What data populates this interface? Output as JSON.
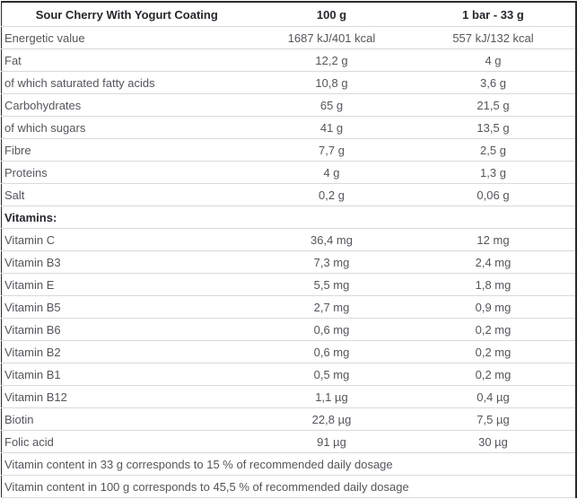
{
  "table": {
    "header": {
      "product": "Sour Cherry With Yogurt Coating",
      "per_100g": "100 g",
      "per_bar": "1 bar - 33 g"
    },
    "nutrients": [
      {
        "label": "Energetic value",
        "per_100g": "1687 kJ/401 kcal",
        "per_bar": "557 kJ/132 kcal"
      },
      {
        "label": "Fat",
        "per_100g": "12,2 g",
        "per_bar": "4 g"
      },
      {
        "label": "of which saturated fatty acids",
        "per_100g": "10,8 g",
        "per_bar": "3,6 g"
      },
      {
        "label": "Carbohydrates",
        "per_100g": "65 g",
        "per_bar": "21,5 g"
      },
      {
        "label": "of which sugars",
        "per_100g": "41 g",
        "per_bar": "13,5 g"
      },
      {
        "label": "Fibre",
        "per_100g": "7,7 g",
        "per_bar": "2,5 g"
      },
      {
        "label": "Proteins",
        "per_100g": "4 g",
        "per_bar": "1,3 g"
      },
      {
        "label": "Salt",
        "per_100g": "0,2 g",
        "per_bar": "0,06 g"
      }
    ],
    "vitamins_section_label": "Vitamins:",
    "vitamins": [
      {
        "label": "Vitamin C",
        "per_100g": "36,4 mg",
        "per_bar": "12 mg"
      },
      {
        "label": "Vitamin B3",
        "per_100g": "7,3 mg",
        "per_bar": "2,4 mg"
      },
      {
        "label": "Vitamin E",
        "per_100g": "5,5 mg",
        "per_bar": "1,8 mg"
      },
      {
        "label": "Vitamin B5",
        "per_100g": "2,7 mg",
        "per_bar": "0,9 mg"
      },
      {
        "label": "Vitamin B6",
        "per_100g": "0,6 mg",
        "per_bar": "0,2 mg"
      },
      {
        "label": "Vitamin B2",
        "per_100g": "0,6 mg",
        "per_bar": "0,2 mg"
      },
      {
        "label": "Vitamin B1",
        "per_100g": "0,5 mg",
        "per_bar": "0,2 mg"
      },
      {
        "label": "Vitamin B12",
        "per_100g": "1,1 µg",
        "per_bar": "0,4 µg"
      },
      {
        "label": "Biotin",
        "per_100g": "22,8 µg",
        "per_bar": "7,5 µg"
      },
      {
        "label": "Folic acid",
        "per_100g": "91 µg",
        "per_bar": "30 µg"
      }
    ],
    "footnotes": [
      {
        "text": "Vitamin content in 33 g corresponds to 15 % of recommended daily dosage"
      },
      {
        "text": "Vitamin content in 100 g corresponds to 45,5 % of recommended daily dosage"
      }
    ]
  },
  "colors": {
    "outer_border": "#2b2b2b",
    "row_separator": "#d9d9d9",
    "header_text": "#25272c",
    "body_text": "#54565b",
    "background": "#ffffff"
  }
}
